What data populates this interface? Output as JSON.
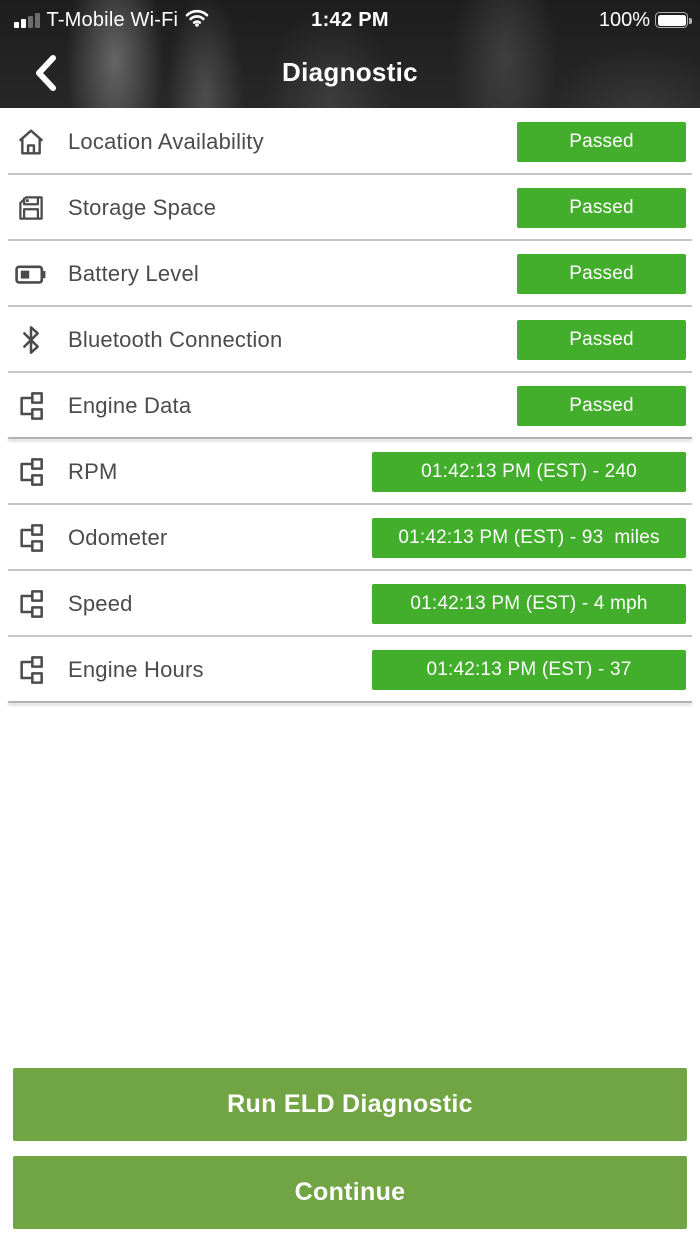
{
  "status_bar": {
    "carrier": "T-Mobile Wi-Fi",
    "time": "1:42 PM",
    "battery_percent": "100%"
  },
  "header": {
    "title": "Diagnostic"
  },
  "colors": {
    "badge_green": "#43ad2c",
    "button_green": "#71a544",
    "header_background": "#242424",
    "label_gray": "#4b4b4b"
  },
  "rows": [
    {
      "icon": "home-icon",
      "label": "Location Availability",
      "status": "Passed",
      "wide": false,
      "section_end": false
    },
    {
      "icon": "floppy-disk-icon",
      "label": "Storage Space",
      "status": "Passed",
      "wide": false,
      "section_end": false
    },
    {
      "icon": "battery-icon",
      "label": "Battery Level",
      "status": "Passed",
      "wide": false,
      "section_end": false
    },
    {
      "icon": "bluetooth-icon",
      "label": "Bluetooth Connection",
      "status": "Passed",
      "wide": false,
      "section_end": false
    },
    {
      "icon": "engine-data-icon",
      "label": "Engine Data",
      "status": "Passed",
      "wide": false,
      "section_end": true
    },
    {
      "icon": "engine-data-icon",
      "label": "RPM",
      "status": "01:42:13 PM (EST) - 240",
      "wide": true,
      "section_end": false
    },
    {
      "icon": "engine-data-icon",
      "label": "Odometer",
      "status": "01:42:13 PM (EST) - 93  miles",
      "wide": true,
      "section_end": false
    },
    {
      "icon": "engine-data-icon",
      "label": "Speed",
      "status": "01:42:13 PM (EST) - 4 mph",
      "wide": true,
      "section_end": false
    },
    {
      "icon": "engine-data-icon",
      "label": "Engine Hours",
      "status": "01:42:13 PM (EST) - 37",
      "wide": true,
      "section_end": true
    }
  ],
  "buttons": {
    "run_label": "Run ELD Diagnostic",
    "continue_label": "Continue"
  }
}
